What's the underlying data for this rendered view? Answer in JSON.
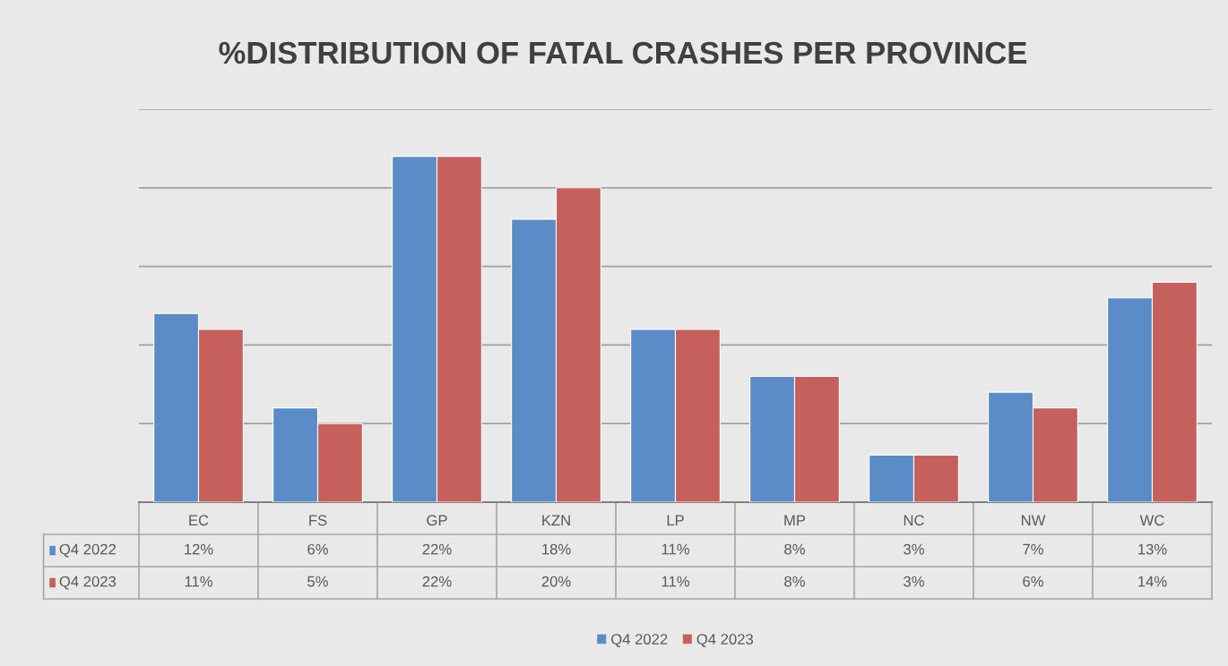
{
  "chart_data": {
    "type": "bar",
    "title": "%DISTRIBUTION OF FATAL CRASHES PER PROVINCE",
    "categories": [
      "EC",
      "FS",
      "GP",
      "KZN",
      "LP",
      "MP",
      "NC",
      "NW",
      "WC"
    ],
    "series": [
      {
        "name": "Q4 2022",
        "color": "#5b8cc7",
        "values": [
          12,
          6,
          22,
          18,
          11,
          8,
          3,
          7,
          13
        ],
        "value_labels": [
          "12%",
          "6%",
          "22%",
          "18%",
          "11%",
          "8%",
          "3%",
          "7%",
          "13%"
        ]
      },
      {
        "name": "Q4 2023",
        "color": "#c5605d",
        "values": [
          11,
          5,
          22,
          20,
          11,
          8,
          3,
          6,
          14
        ],
        "value_labels": [
          "11%",
          "5%",
          "22%",
          "20%",
          "11%",
          "8%",
          "3%",
          "6%",
          "14%"
        ]
      }
    ],
    "ylim": [
      0,
      25
    ],
    "yticks": [
      {
        "value": 0,
        "label": null
      },
      {
        "value": 5,
        "label": null
      },
      {
        "value": 10,
        "label": null
      },
      {
        "value": 15,
        "label": null
      },
      {
        "value": 20,
        "label": null
      },
      {
        "value": 25,
        "label": null
      }
    ],
    "grid": "y",
    "legend": "bottom",
    "tick_labels": "x"
  }
}
